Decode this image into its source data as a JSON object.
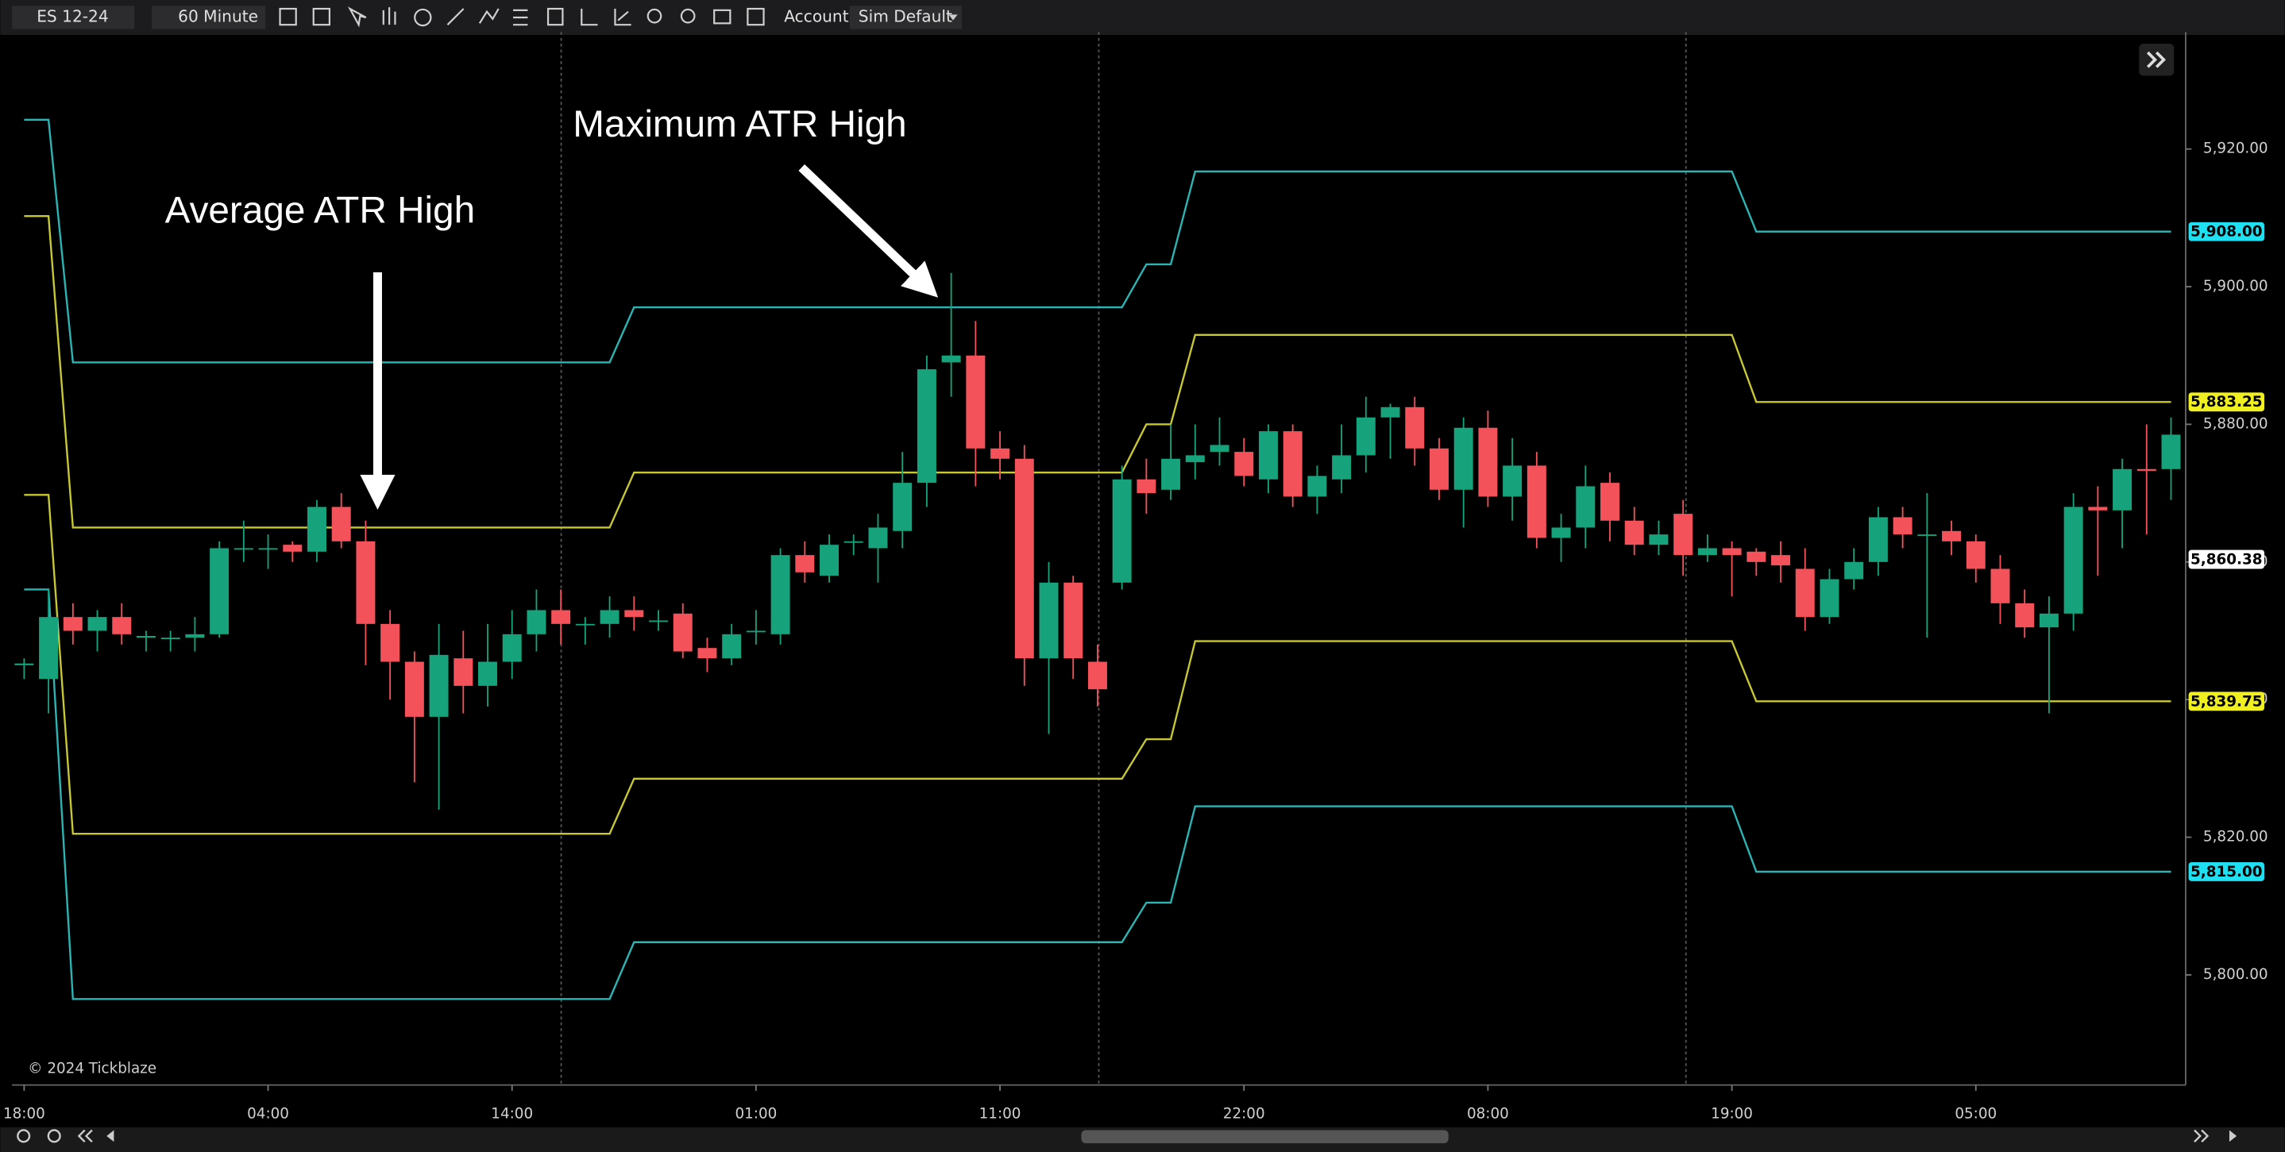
{
  "toolbar": {
    "symbol": "ES 12-24",
    "timeframe": "60 Minute",
    "account_label": "Account:",
    "account": "Sim Default"
  },
  "chart_data": {
    "type": "candlestick",
    "annotations": [
      "Average ATR High",
      "Maximum ATR High"
    ],
    "watermark": "© 2024 Tickblaze",
    "up_color": "#16a37c",
    "down_color": "#f4525a",
    "xlim": [
      -0.5,
      88.6
    ],
    "xticks": [
      {
        "value": 0,
        "label": "18:00"
      },
      {
        "value": 10,
        "label": "04:00"
      },
      {
        "value": 20,
        "label": "14:00"
      },
      {
        "value": 30,
        "label": "01:00"
      },
      {
        "value": 40,
        "label": "11:00"
      },
      {
        "value": 50,
        "label": "22:00"
      },
      {
        "value": 60,
        "label": "08:00"
      },
      {
        "value": 70,
        "label": "19:00"
      },
      {
        "value": 80,
        "label": "05:00"
      }
    ],
    "ylim": [
      5784,
      5937
    ],
    "yticks": [
      {
        "value": 5800,
        "label": "5,800.00"
      },
      {
        "value": 5820,
        "label": "5,820.00"
      },
      {
        "value": 5840,
        "label": "5,840.00"
      },
      {
        "value": 5860,
        "label": "5,860.00"
      },
      {
        "value": 5880,
        "label": "5,880.00"
      },
      {
        "value": 5900,
        "label": "5,900.00"
      },
      {
        "value": 5920,
        "label": "5,920.00"
      }
    ],
    "grid": false,
    "open": [
      5845,
      5843,
      5852,
      5850,
      5852,
      5849,
      5849,
      5849,
      5849.5,
      5862,
      5862,
      5862.5,
      5861.5,
      5868,
      5863,
      5851,
      5845.5,
      5837.5,
      5846,
      5842,
      5845.5,
      5849.5,
      5853,
      5851,
      5851,
      5853,
      5851.5,
      5852.5,
      5847.5,
      5846,
      5850,
      5849.5,
      5861,
      5858,
      5863,
      5862,
      5864.5,
      5871.5,
      5889,
      5890,
      5876.5,
      5875,
      5846,
      5857,
      5845.5,
      5857,
      5872,
      5870.5,
      5874.5,
      5876,
      5876,
      5872,
      5879,
      5869.5,
      5872,
      5875.5,
      5881,
      5882.5,
      5876.5,
      5870.5,
      5879.5,
      5869.5,
      5874,
      5863.5,
      5865,
      5871.5,
      5866,
      5862.5,
      5867,
      5861,
      5862,
      5861.5,
      5861,
      5859,
      5852,
      5857.5,
      5860,
      5866.5,
      5864,
      5864.5,
      5863,
      5859,
      5854,
      5850.5,
      5852.5,
      5868,
      5867.5,
      5873.5,
      5873.5
    ],
    "high": [
      5846,
      5856,
      5854,
      5853,
      5854,
      5850,
      5850,
      5852,
      5863,
      5866,
      5864,
      5863,
      5869,
      5870,
      5866,
      5853,
      5847,
      5851,
      5850,
      5851,
      5853,
      5856,
      5856,
      5852,
      5855,
      5855,
      5853,
      5854,
      5849,
      5851,
      5853,
      5862,
      5863,
      5864,
      5864,
      5867,
      5876,
      5890,
      5902,
      5895,
      5879,
      5877,
      5860,
      5858,
      5848,
      5874,
      5875,
      5880,
      5880,
      5881,
      5878,
      5880,
      5880,
      5874,
      5880,
      5884,
      5883,
      5884,
      5878,
      5881,
      5882,
      5878,
      5876,
      5867,
      5874,
      5873,
      5868,
      5866,
      5869,
      5864,
      5863,
      5862,
      5863,
      5862,
      5859,
      5862,
      5868,
      5868,
      5870,
      5866,
      5864,
      5861,
      5856,
      5855,
      5870,
      5871,
      5875,
      5880,
      5881
    ],
    "low": [
      5843,
      5838,
      5848,
      5847,
      5848,
      5847,
      5847,
      5847,
      5849,
      5860,
      5859,
      5860,
      5860,
      5862,
      5845,
      5840,
      5828,
      5824,
      5838,
      5839,
      5843,
      5847,
      5848,
      5848,
      5849,
      5850,
      5850,
      5846,
      5844,
      5845,
      5848,
      5848,
      5857,
      5857,
      5861,
      5857,
      5862,
      5868,
      5884,
      5871,
      5872,
      5842,
      5835,
      5843,
      5839,
      5856,
      5867,
      5869,
      5872,
      5874,
      5871,
      5870,
      5868,
      5867,
      5870,
      5873,
      5875,
      5874,
      5869,
      5865,
      5868,
      5866,
      5862,
      5860,
      5862,
      5863,
      5861,
      5861,
      5858,
      5860,
      5855,
      5858,
      5857,
      5850,
      5851,
      5856,
      5858,
      5862,
      5849,
      5861,
      5857,
      5851,
      5849,
      5838,
      5850,
      5858,
      5862,
      5864,
      5869
    ],
    "close": [
      5845.25,
      5852,
      5850,
      5852,
      5849.5,
      5849.25,
      5849,
      5849.5,
      5862,
      5862,
      5862,
      5861.5,
      5868,
      5863,
      5851,
      5845.5,
      5837.5,
      5846.5,
      5842,
      5845.5,
      5849.5,
      5853,
      5851,
      5851,
      5853,
      5852,
      5851.5,
      5847,
      5846,
      5849.5,
      5850,
      5861,
      5858.5,
      5862.5,
      5863,
      5865,
      5871.5,
      5888,
      5890,
      5876.5,
      5875,
      5846,
      5857,
      5846,
      5841.5,
      5872,
      5870,
      5875,
      5875.5,
      5877,
      5872.5,
      5879,
      5869.5,
      5872.5,
      5875.5,
      5881,
      5882.5,
      5876.5,
      5870.5,
      5879.5,
      5869.5,
      5874,
      5863.5,
      5865,
      5871,
      5866,
      5862.5,
      5864,
      5861,
      5862,
      5861,
      5860,
      5859.5,
      5852,
      5857.5,
      5860,
      5866.5,
      5864,
      5864,
      5863,
      5859,
      5854,
      5850.5,
      5852.5,
      5868,
      5867.5,
      5873.5,
      5873.25,
      5878.5
    ],
    "lines": [
      {
        "color": "#2bb5b5",
        "x": [
          0,
          1,
          2,
          24,
          25,
          45,
          46,
          47,
          48,
          70,
          71,
          88
        ],
        "values": [
          5924.25,
          5924.25,
          5889,
          5889,
          5897,
          5897,
          5903.25,
          5903.25,
          5916.75,
          5916.75,
          5908,
          5908
        ]
      },
      {
        "color": "#c8c832",
        "x": [
          0,
          1,
          2,
          24,
          25,
          45,
          46,
          47,
          48,
          70,
          71,
          88
        ],
        "values": [
          5910.25,
          5910.25,
          5865,
          5865,
          5873,
          5873,
          5880,
          5880,
          5893,
          5893,
          5883.25,
          5883.25
        ]
      },
      {
        "color": "#c8c832",
        "x": [
          0,
          1,
          2,
          24,
          25,
          45,
          46,
          47,
          48,
          70,
          71,
          88
        ],
        "values": [
          5869.75,
          5869.75,
          5820.5,
          5820.5,
          5828.5,
          5828.5,
          5834.25,
          5834.25,
          5848.5,
          5848.5,
          5839.75,
          5839.75
        ]
      },
      {
        "color": "#2bb5b5",
        "x": [
          0,
          1,
          2,
          24,
          25,
          45,
          46,
          47,
          48,
          70,
          71,
          88
        ],
        "values": [
          5856,
          5856,
          5796.5,
          5796.5,
          5804.75,
          5804.75,
          5810.5,
          5810.5,
          5824.5,
          5824.5,
          5815,
          5815
        ]
      }
    ],
    "price_markers": [
      {
        "value": 5908,
        "label": "5,908.00",
        "color": "#1fe0f0"
      },
      {
        "value": 5883.25,
        "label": "5,883.25",
        "color": "#f0f020"
      },
      {
        "value": 5860.38,
        "label": "5,860.38",
        "color": "#ffffff"
      },
      {
        "value": 5839.75,
        "label": "5,839.75",
        "color": "#f0f020"
      },
      {
        "value": 5815,
        "label": "5,815.00",
        "color": "#1fe0f0"
      }
    ]
  }
}
